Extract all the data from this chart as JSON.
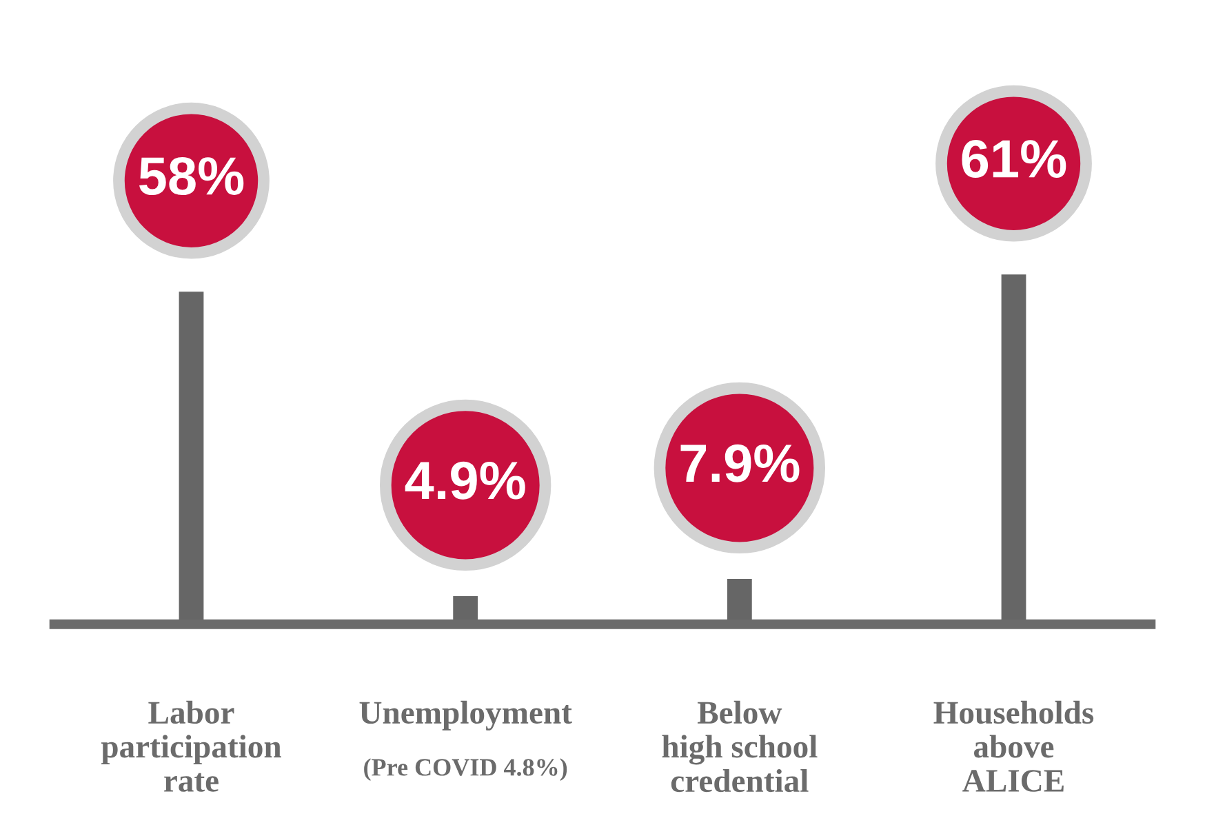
{
  "chart_data": {
    "type": "bar",
    "categories": [
      "Labor\nparticipation\nrate",
      "Unemployment",
      "Below\nhigh school\ncredential",
      "Households\nabove\nALICE"
    ],
    "series": [
      {
        "color": "#666666",
        "values": [
          58,
          4.9,
          7.9,
          61
        ],
        "value_labels": [
          "58%",
          "4.9%",
          "7.9%",
          "61%"
        ]
      }
    ],
    "tick_labels": "x",
    "annotations": [
      "(Pre COVID 4.8%)"
    ]
  }
}
